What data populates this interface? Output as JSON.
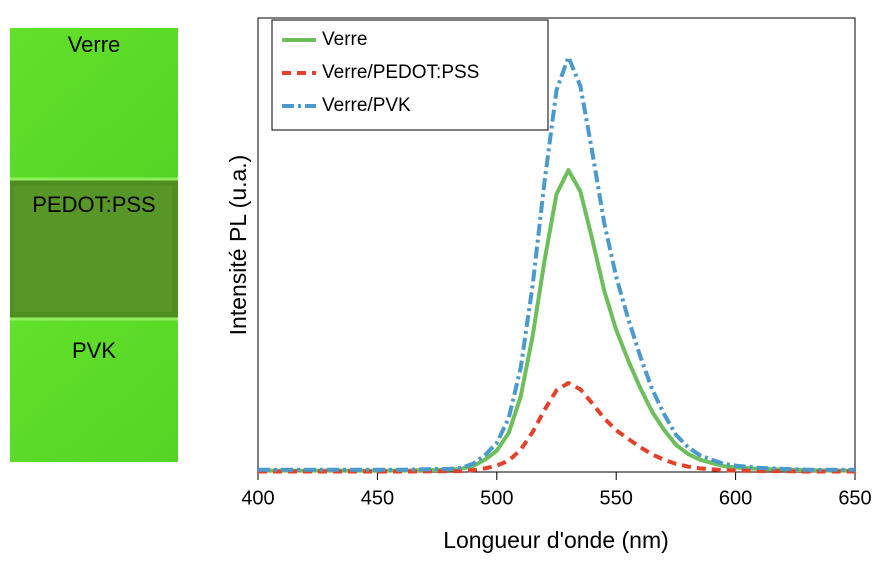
{
  "photo_labels": [
    "Verre",
    "PEDOT:PSS",
    "PVK"
  ],
  "chart_data": {
    "type": "line",
    "xlabel": "Longueur d'onde (nm)",
    "ylabel": "Intensité PL (u.a.)",
    "x": [
      400,
      420,
      440,
      460,
      480,
      485,
      490,
      495,
      500,
      505,
      510,
      515,
      520,
      525,
      530,
      535,
      540,
      545,
      550,
      555,
      560,
      565,
      570,
      575,
      580,
      585,
      590,
      595,
      600,
      610,
      620,
      630,
      640,
      650
    ],
    "series": [
      {
        "name": "Verre",
        "color": "#6cbf5a",
        "style": "solid",
        "values": [
          0.003,
          0.003,
          0.003,
          0.003,
          0.005,
          0.007,
          0.013,
          0.027,
          0.047,
          0.086,
          0.166,
          0.299,
          0.466,
          0.612,
          0.665,
          0.618,
          0.512,
          0.399,
          0.313,
          0.246,
          0.186,
          0.133,
          0.093,
          0.06,
          0.04,
          0.027,
          0.02,
          0.013,
          0.01,
          0.007,
          0.005,
          0.004,
          0.003,
          0.003
        ]
      },
      {
        "name": "Verre/PEDOT:PSS",
        "color": "#e5402a",
        "style": "dashed",
        "values": [
          0.001,
          0.001,
          0.001,
          0.001,
          0.002,
          0.002,
          0.004,
          0.008,
          0.014,
          0.025,
          0.049,
          0.088,
          0.137,
          0.18,
          0.196,
          0.182,
          0.151,
          0.118,
          0.092,
          0.073,
          0.055,
          0.039,
          0.027,
          0.018,
          0.012,
          0.008,
          0.006,
          0.004,
          0.003,
          0.002,
          0.002,
          0.001,
          0.001,
          0.001
        ]
      },
      {
        "name": "Verre/PVK",
        "color": "#4a9acd",
        "style": "dashdot",
        "values": [
          0.005,
          0.005,
          0.005,
          0.005,
          0.007,
          0.009,
          0.018,
          0.037,
          0.064,
          0.119,
          0.229,
          0.411,
          0.64,
          0.841,
          0.914,
          0.85,
          0.704,
          0.548,
          0.43,
          0.338,
          0.256,
          0.183,
          0.128,
          0.082,
          0.055,
          0.037,
          0.027,
          0.018,
          0.014,
          0.009,
          0.007,
          0.005,
          0.005,
          0.005
        ]
      }
    ],
    "xlim": [
      400,
      650
    ],
    "xticks": [
      400,
      450,
      500,
      550,
      600,
      650
    ],
    "ylim": [
      0,
      1
    ],
    "legend": "upper left"
  }
}
